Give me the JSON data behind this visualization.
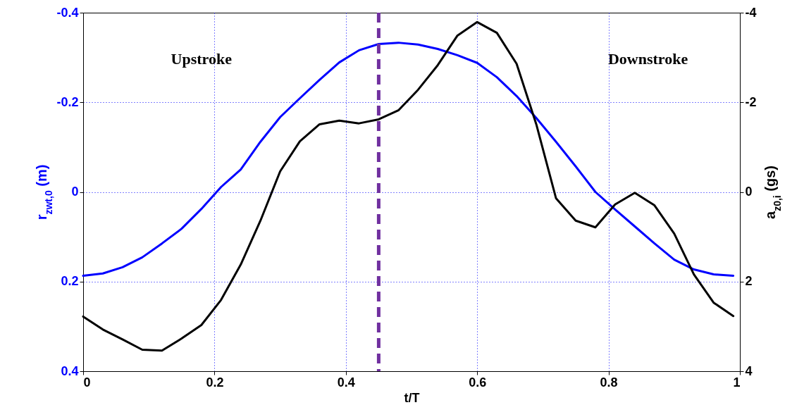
{
  "chart_data": {
    "type": "line",
    "xlabel": "t/T",
    "ylabel": "r$_{zwt,0}$ (m)",
    "y2label": "a$_{z0,i}$ (gs)",
    "x": [
      0,
      0.03,
      0.06,
      0.09,
      0.12,
      0.15,
      0.18,
      0.21,
      0.24,
      0.27,
      0.3,
      0.33,
      0.36,
      0.39,
      0.42,
      0.45,
      0.48,
      0.51,
      0.54,
      0.57,
      0.6,
      0.63,
      0.66,
      0.69,
      0.72,
      0.75,
      0.78,
      0.81,
      0.84,
      0.87,
      0.9,
      0.93,
      0.96,
      0.99
    ],
    "series": [
      {
        "color": "#0000ff",
        "values": [
          0.187,
          0.182,
          0.168,
          0.146,
          0.115,
          0.082,
          0.038,
          -0.011,
          -0.05,
          -0.112,
          -0.167,
          -0.209,
          -0.25,
          -0.289,
          -0.316,
          -0.33,
          -0.333,
          -0.329,
          -0.319,
          -0.305,
          -0.288,
          -0.256,
          -0.214,
          -0.165,
          -0.112,
          -0.057,
          0,
          0.039,
          0.077,
          0.115,
          0.151,
          0.173,
          0.184,
          0.187
        ]
      },
      {
        "color": "#000000",
        "axis": "y2",
        "values": [
          2.78,
          3.07,
          3.29,
          3.52,
          3.54,
          3.27,
          2.97,
          2.41,
          1.62,
          0.64,
          -0.46,
          -1.13,
          -1.51,
          -1.59,
          -1.53,
          -1.62,
          -1.82,
          -2.28,
          -2.83,
          -3.49,
          -3.79,
          -3.55,
          -2.86,
          -1.51,
          0.14,
          0.64,
          0.79,
          0.28,
          0.02,
          0.3,
          0.93,
          1.84,
          2.47,
          2.77
        ]
      }
    ],
    "xlim": [
      0,
      1
    ],
    "xticks": [
      0,
      0.2,
      0.4,
      0.6,
      0.8,
      1
    ],
    "ylim": [
      0.4,
      -0.4
    ],
    "yticks": [
      -0.4,
      -0.2,
      0,
      0.2,
      0.4
    ],
    "y2lim": [
      4,
      -4
    ],
    "y2ticks": [
      -4,
      -2,
      0,
      2,
      4
    ],
    "ref_lines": [
      {
        "axis": "x",
        "value": 0.45,
        "color": "#7030a0",
        "line_style": "dashed"
      }
    ],
    "annotations": [
      "Upstroke",
      "Downstroke"
    ],
    "grid": true,
    "marker": "none",
    "line_style": "solid"
  }
}
